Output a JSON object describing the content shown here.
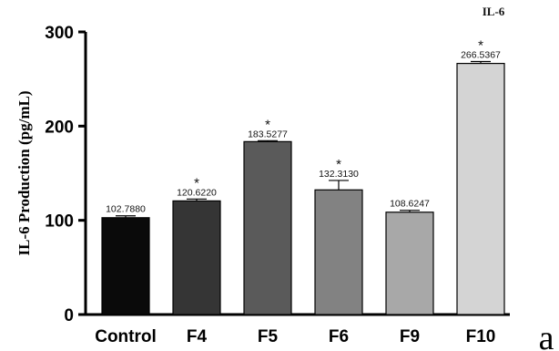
{
  "chart_data": {
    "type": "bar",
    "title": "IL-6",
    "ylabel": "IL-6 Production (pg/mL)",
    "xlabel": "",
    "ylim": [
      0,
      300
    ],
    "yticks": [
      0,
      100,
      200,
      300
    ],
    "categories": [
      "Control",
      "F4",
      "F5",
      "F6",
      "F9",
      "F10"
    ],
    "values": [
      102.788,
      120.622,
      183.5277,
      132.313,
      108.6247,
      266.5367
    ],
    "value_labels": [
      "102.7880",
      "120.6220",
      "183.5277",
      "132.3130",
      "108.6247",
      "266.5367"
    ],
    "errors": [
      2,
      2,
      1,
      10,
      2,
      2
    ],
    "significance": [
      "",
      "*",
      "*",
      "*",
      "",
      "*"
    ],
    "colors": [
      "#0a0a0a",
      "#353535",
      "#5a5a5a",
      "#828282",
      "#a8a8a8",
      "#d4d4d4"
    ],
    "grid": false,
    "legend": "none"
  },
  "panel_label": "a"
}
